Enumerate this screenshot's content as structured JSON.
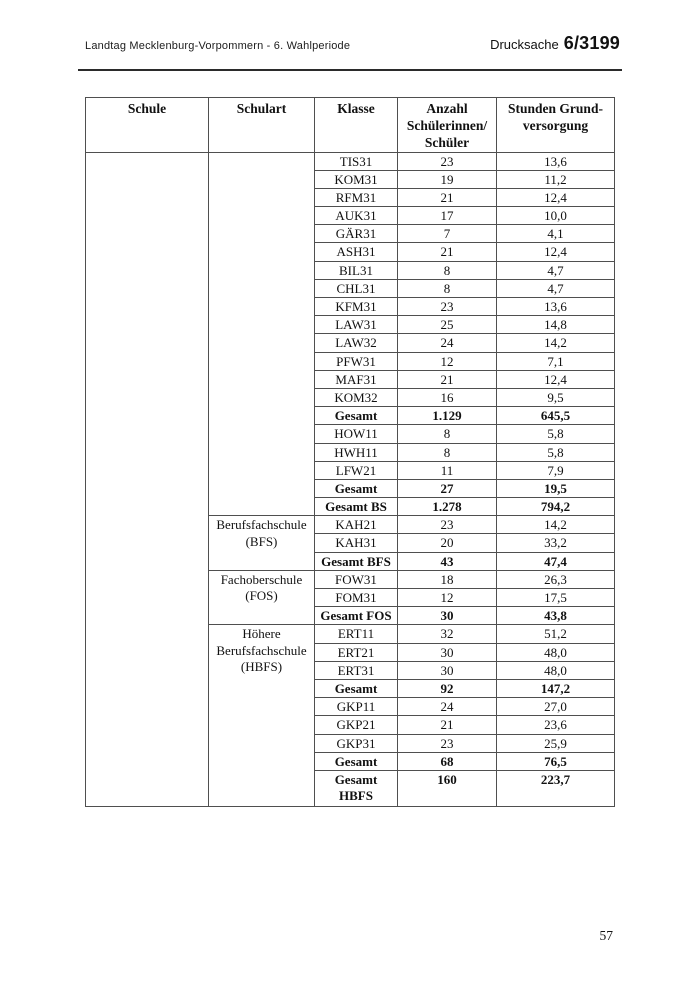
{
  "page_header": {
    "left": "Landtag Mecklenburg-Vorpommern - 6. Wahlperiode",
    "doc_label": "Drucksache",
    "doc_number": "6/3199"
  },
  "table": {
    "columns": [
      "Schule",
      "Schulart",
      "Klasse",
      "Anzahl\nSchülerinnen/\nSchüler",
      "Stunden Grund-\nversorgung"
    ],
    "schule_cell": "",
    "sections": [
      {
        "schulart": "",
        "rows": [
          {
            "klasse": "TIS31",
            "anzahl": "23",
            "stunden": "13,6",
            "bold": false
          },
          {
            "klasse": "KOM31",
            "anzahl": "19",
            "stunden": "11,2",
            "bold": false
          },
          {
            "klasse": "RFM31",
            "anzahl": "21",
            "stunden": "12,4",
            "bold": false
          },
          {
            "klasse": "AUK31",
            "anzahl": "17",
            "stunden": "10,0",
            "bold": false
          },
          {
            "klasse": "GÄR31",
            "anzahl": "7",
            "stunden": "4,1",
            "bold": false
          },
          {
            "klasse": "ASH31",
            "anzahl": "21",
            "stunden": "12,4",
            "bold": false
          },
          {
            "klasse": "BIL31",
            "anzahl": "8",
            "stunden": "4,7",
            "bold": false
          },
          {
            "klasse": "CHL31",
            "anzahl": "8",
            "stunden": "4,7",
            "bold": false
          },
          {
            "klasse": "KFM31",
            "anzahl": "23",
            "stunden": "13,6",
            "bold": false
          },
          {
            "klasse": "LAW31",
            "anzahl": "25",
            "stunden": "14,8",
            "bold": false
          },
          {
            "klasse": "LAW32",
            "anzahl": "24",
            "stunden": "14,2",
            "bold": false
          },
          {
            "klasse": "PFW31",
            "anzahl": "12",
            "stunden": "7,1",
            "bold": false
          },
          {
            "klasse": "MAF31",
            "anzahl": "21",
            "stunden": "12,4",
            "bold": false
          },
          {
            "klasse": "KOM32",
            "anzahl": "16",
            "stunden": "9,5",
            "bold": false
          },
          {
            "klasse": "Gesamt",
            "anzahl": "1.129",
            "stunden": "645,5",
            "bold": true
          },
          {
            "klasse": "HOW11",
            "anzahl": "8",
            "stunden": "5,8",
            "bold": false
          },
          {
            "klasse": "HWH11",
            "anzahl": "8",
            "stunden": "5,8",
            "bold": false
          },
          {
            "klasse": "LFW21",
            "anzahl": "11",
            "stunden": "7,9",
            "bold": false
          },
          {
            "klasse": "Gesamt",
            "anzahl": "27",
            "stunden": "19,5",
            "bold": true
          },
          {
            "klasse": "Gesamt BS",
            "anzahl": "1.278",
            "stunden": "794,2",
            "bold": true
          }
        ]
      },
      {
        "schulart": "Berufsfachschule\n(BFS)",
        "rows": [
          {
            "klasse": "KAH21",
            "anzahl": "23",
            "stunden": "14,2",
            "bold": false
          },
          {
            "klasse": "KAH31",
            "anzahl": "20",
            "stunden": "33,2",
            "bold": false
          },
          {
            "klasse": "Gesamt BFS",
            "anzahl": "43",
            "stunden": "47,4",
            "bold": true
          }
        ]
      },
      {
        "schulart": "Fachoberschule\n(FOS)",
        "rows": [
          {
            "klasse": "FOW31",
            "anzahl": "18",
            "stunden": "26,3",
            "bold": false
          },
          {
            "klasse": "FOM31",
            "anzahl": "12",
            "stunden": "17,5",
            "bold": false
          },
          {
            "klasse": "Gesamt FOS",
            "anzahl": "30",
            "stunden": "43,8",
            "bold": true
          }
        ]
      },
      {
        "schulart": "Höhere\nBerufsfachschule\n(HBFS)",
        "rows": [
          {
            "klasse": "ERT11",
            "anzahl": "32",
            "stunden": "51,2",
            "bold": false
          },
          {
            "klasse": "ERT21",
            "anzahl": "30",
            "stunden": "48,0",
            "bold": false
          },
          {
            "klasse": "ERT31",
            "anzahl": "30",
            "stunden": "48,0",
            "bold": false
          },
          {
            "klasse": "Gesamt",
            "anzahl": "92",
            "stunden": "147,2",
            "bold": true
          },
          {
            "klasse": "GKP11",
            "anzahl": "24",
            "stunden": "27,0",
            "bold": false
          },
          {
            "klasse": "GKP21",
            "anzahl": "21",
            "stunden": "23,6",
            "bold": false
          },
          {
            "klasse": "GKP31",
            "anzahl": "23",
            "stunden": "25,9",
            "bold": false
          },
          {
            "klasse": "Gesamt",
            "anzahl": "68",
            "stunden": "76,5",
            "bold": true
          },
          {
            "klasse": "Gesamt\nHBFS",
            "anzahl": "160",
            "stunden": "223,7",
            "bold": true
          }
        ]
      }
    ]
  },
  "page_number": "57"
}
